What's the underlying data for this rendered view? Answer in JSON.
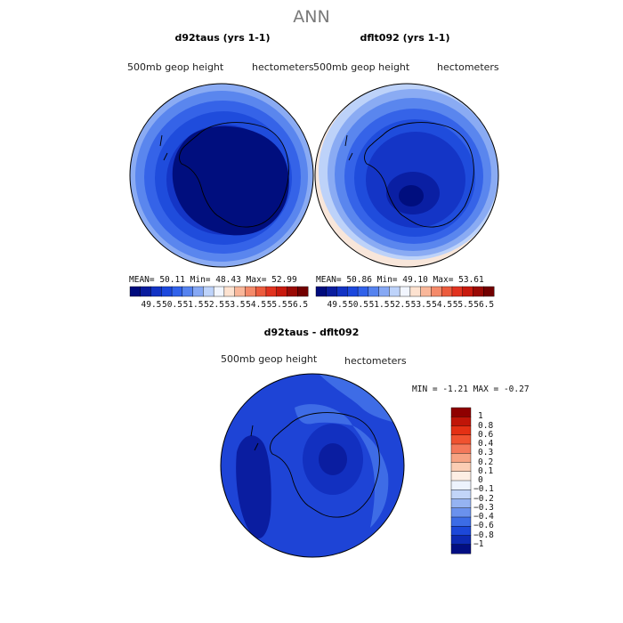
{
  "figure_title": "ANN",
  "panels": [
    {
      "title": "d92taus (yrs 1-1)",
      "left_label": "500mb geop height",
      "right_label": "hectometers",
      "stats": "MEAN=  50.11   Min=  48.43   Max=  52.99"
    },
    {
      "title": "dflt092 (yrs 1-1)",
      "left_label": "500mb geop height",
      "right_label": "hectometers",
      "stats": "MEAN=  50.86   Min=  49.10   Max=  53.61"
    },
    {
      "title": "d92taus - dflt092",
      "left_label": "500mb geop height",
      "right_label": "hectometers",
      "stats": "MIN =   -1.21  MAX =   -0.27"
    }
  ],
  "colorbar_horizontal": {
    "labels": [
      "49.5",
      "50.5",
      "51.5",
      "52.5",
      "53.5",
      "54.5",
      "55.5",
      "56.5"
    ],
    "colors": [
      "#000b7d",
      "#0a1d9e",
      "#1233c4",
      "#1c48dd",
      "#3162ea",
      "#5683ef",
      "#86a8f4",
      "#bed3fa",
      "#f1f5fe",
      "#fde2d0",
      "#f9b79a",
      "#f48a6a",
      "#ec5c3e",
      "#e13320",
      "#c81a0e",
      "#9a0a05",
      "#720000"
    ]
  },
  "colorbar_vertical": {
    "labels": [
      "1",
      "0.8",
      "0.6",
      "0.4",
      "0.3",
      "0.2",
      "0.1",
      "0",
      "-0.1",
      "-0.2",
      "-0.3",
      "-0.4",
      "-0.6",
      "-0.8",
      "-1"
    ],
    "colors": [
      "#8f0000",
      "#c01508",
      "#e43014",
      "#f05230",
      "#f4785a",
      "#f7a383",
      "#fbcdb4",
      "#fdeee4",
      "#edf3fd",
      "#c2d5f8",
      "#95b3f2",
      "#6a91ed",
      "#3c6ce6",
      "#1c48d9",
      "#0d2ab3",
      "#020e82"
    ]
  },
  "map_colors": {
    "level_1": "#000e7e",
    "level_2": "#0a1fa3",
    "level_3": "#1435c6",
    "level_4": "#1f4cdc",
    "level_5": "#3563e8",
    "level_6": "#5a86ee",
    "level_7": "#8aabf3",
    "level_8": "#bdd2f9",
    "level_9": "#f8e6da",
    "diff_deep": "#0a1da0",
    "diff_mid": "#1e44d6",
    "diff_light": "#3e6ce6"
  }
}
